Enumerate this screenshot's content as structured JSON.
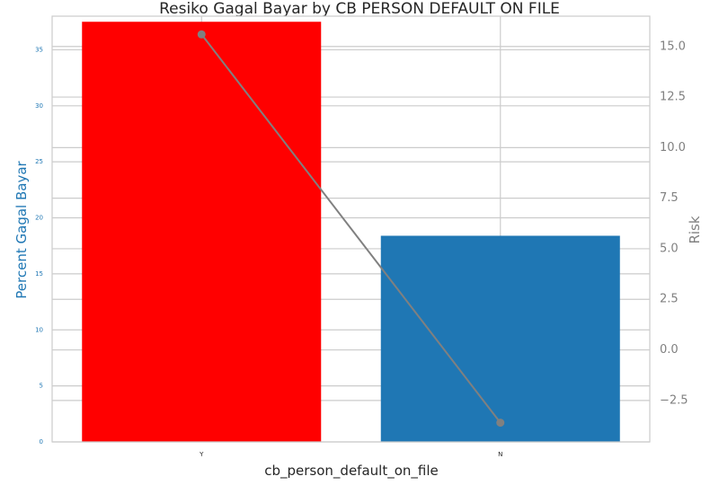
{
  "chart_data": {
    "type": "bar",
    "title": "Resiko Gagal Bayar by CB PERSON DEFAULT ON FILE",
    "xlabel": "cb_person_default_on_file",
    "categories": [
      "Y",
      "N"
    ],
    "bars": {
      "ylabel": "Percent Gagal Bayar",
      "values": [
        37.5,
        18.4
      ],
      "colors": [
        "#ff0000",
        "#1f77b4"
      ],
      "ylim": [
        0,
        38
      ],
      "ticks": [
        0,
        5,
        10,
        15,
        20,
        25,
        30,
        35
      ]
    },
    "line": {
      "ylabel": "Risk",
      "values": [
        15.6,
        -3.6
      ],
      "color": "#808080",
      "ylim": [
        -4.55,
        16.5
      ],
      "ticks": [
        -2.5,
        0.0,
        2.5,
        5.0,
        7.5,
        10.0,
        12.5,
        15.0
      ],
      "tick_labels": [
        "−2.5",
        "0.0",
        "2.5",
        "5.0",
        "7.5",
        "10.0",
        "12.5",
        "15.0"
      ]
    },
    "grid": true
  }
}
